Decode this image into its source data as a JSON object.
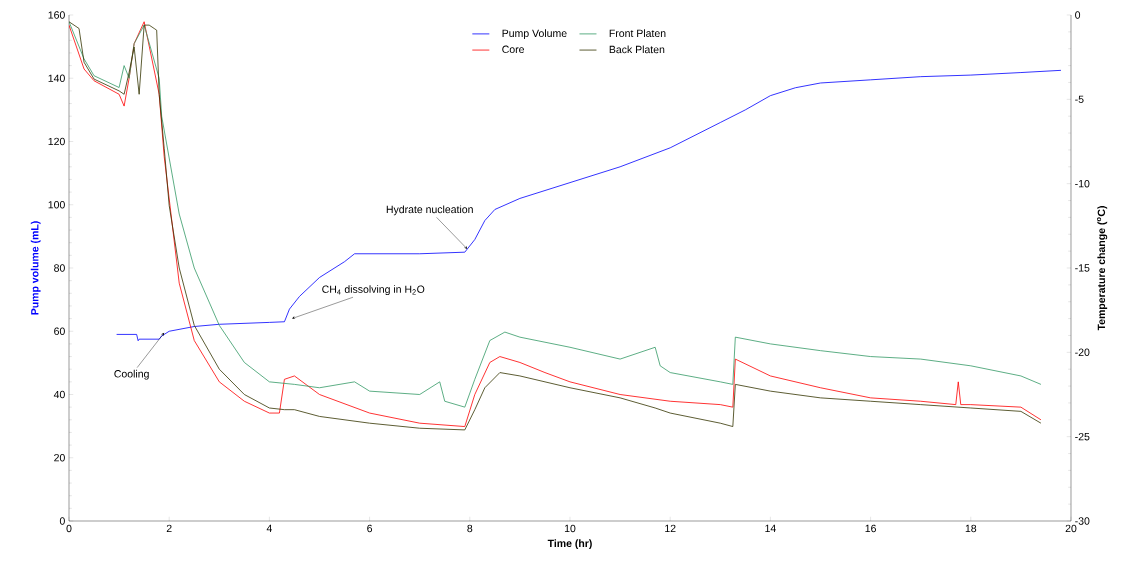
{
  "chart_data": {
    "type": "line",
    "xlabel": "Time (hr)",
    "ylabel": "Pump volume (mL)",
    "y2label": "Temperature change ($^{o}$C)",
    "xlim": [
      0,
      20
    ],
    "xticks": [
      0,
      2,
      4,
      6,
      8,
      10,
      12,
      14,
      16,
      18,
      20
    ],
    "ylim": [
      0,
      160
    ],
    "yticks": [
      0,
      20,
      40,
      60,
      80,
      100,
      120,
      140,
      160
    ],
    "y2lim": [
      -30,
      0
    ],
    "y2ticks": [
      -30,
      -25,
      -20,
      -15,
      -10,
      -5,
      0
    ],
    "legend": "top",
    "grid": false,
    "marker": "none",
    "line_style": "solid",
    "series": [
      {
        "name": "Pump Volume",
        "color": "#0000ff",
        "x": [
          0.95,
          1.35,
          1.38,
          1.4,
          1.8,
          1.85,
          2.0,
          2.5,
          3,
          4,
          4.3,
          4.4,
          4.6,
          5,
          5.5,
          5.7,
          7,
          7.9,
          8.1,
          8.3,
          8.5,
          9,
          10,
          11,
          12,
          13,
          13.5,
          14,
          14.5,
          15,
          16,
          17,
          18,
          19,
          19.8
        ],
        "values": [
          59,
          59,
          57,
          57.5,
          57.5,
          58.5,
          60,
          61.5,
          62.2,
          62.8,
          63,
          67,
          71,
          77,
          82,
          84.5,
          84.5,
          85,
          89,
          95,
          98.5,
          102,
          107,
          112,
          118,
          126,
          130,
          134.5,
          137,
          138.5,
          139.5,
          140.5,
          141,
          141.8,
          142.5
        ]
      },
      {
        "name": "Core",
        "color": "#ff0000",
        "axis": "y2",
        "x": [
          0,
          0.3,
          0.5,
          1,
          1.1,
          1.2,
          1.3,
          1.5,
          1.8,
          1.9,
          2.2,
          2.5,
          3,
          3.5,
          4,
          4.2,
          4.3,
          4.5,
          5,
          6,
          7,
          7.9,
          8.1,
          8.4,
          8.6,
          9,
          9.5,
          10,
          11,
          12,
          13,
          13.25,
          13.3,
          14,
          15,
          16,
          17,
          17.7,
          17.75,
          17.8,
          18,
          19,
          19.4
        ],
        "values": [
          -0.6,
          -3.2,
          -3.9,
          -4.7,
          -5.4,
          -3.75,
          -1.7,
          -0.4,
          -4.7,
          -8.4,
          -15.9,
          -19.3,
          -21.75,
          -22.9,
          -23.6,
          -23.6,
          -21.6,
          -21.4,
          -22.5,
          -23.6,
          -24.2,
          -24.4,
          -22.5,
          -20.6,
          -20.25,
          -20.6,
          -21.2,
          -21.75,
          -22.5,
          -22.9,
          -23.1,
          -23.25,
          -20.4,
          -21.4,
          -22.1,
          -22.7,
          -22.9,
          -23.1,
          -21.75,
          -23.1,
          -23.1,
          -23.25,
          -24.0
        ]
      },
      {
        "name": "Front Platen",
        "color": "#339966",
        "axis": "y2",
        "x": [
          0,
          0.3,
          0.5,
          1,
          1.1,
          1.2,
          1.3,
          1.5,
          1.8,
          1.85,
          2.2,
          2.5,
          3,
          3.5,
          4,
          4.5,
          5,
          5.7,
          6,
          7,
          7.4,
          7.5,
          7.9,
          8.1,
          8.4,
          8.7,
          9,
          10,
          11,
          11.7,
          11.8,
          12,
          13,
          13.25,
          13.3,
          14,
          15,
          16,
          17,
          18,
          19,
          19.4
        ],
        "values": [
          -0.4,
          -2.6,
          -3.6,
          -4.3,
          -3.0,
          -3.75,
          -1.7,
          -0.6,
          -3.75,
          -6.0,
          -11.8,
          -15.0,
          -18.4,
          -20.6,
          -21.75,
          -21.9,
          -22.1,
          -21.75,
          -22.3,
          -22.5,
          -21.75,
          -22.9,
          -23.25,
          -21.6,
          -19.3,
          -18.8,
          -19.1,
          -19.7,
          -20.4,
          -19.7,
          -20.8,
          -21.2,
          -21.75,
          -21.9,
          -19.1,
          -19.5,
          -19.9,
          -20.25,
          -20.4,
          -20.8,
          -21.4,
          -21.9
        ]
      },
      {
        "name": "Back Platen",
        "color": "#333300",
        "axis": "y2",
        "x": [
          0,
          0.2,
          0.3,
          0.5,
          1.0,
          1.1,
          1.2,
          1.3,
          1.4,
          1.5,
          1.6,
          1.7,
          1.75,
          1.8,
          1.9,
          2.0,
          2.2,
          2.5,
          3.0,
          3.5,
          4.0,
          4.3,
          4.5,
          5,
          6,
          7,
          7.9,
          8.1,
          8.3,
          8.6,
          9,
          10,
          11,
          11.7,
          12,
          13,
          13.25,
          13.3,
          14,
          15,
          16,
          17,
          18,
          19,
          19.4
        ],
        "values": [
          -0.4,
          -0.8,
          -2.8,
          -3.8,
          -4.5,
          -4.7,
          -3.4,
          -1.9,
          -4.7,
          -0.6,
          -0.6,
          -0.8,
          -0.9,
          -4.7,
          -7.9,
          -11.3,
          -15.0,
          -18.4,
          -21.0,
          -22.5,
          -23.3,
          -23.4,
          -23.4,
          -23.8,
          -24.2,
          -24.5,
          -24.6,
          -23.4,
          -22.1,
          -21.2,
          -21.4,
          -22.1,
          -22.7,
          -23.3,
          -23.6,
          -24.2,
          -24.4,
          -21.9,
          -22.3,
          -22.7,
          -22.9,
          -23.1,
          -23.3,
          -23.5,
          -24.2
        ]
      }
    ],
    "annotations": [
      {
        "text": "Cooling",
        "x": 1.85,
        "y": 58.5
      },
      {
        "text": "CH$_{4}$ dissolving in H$_{2}$O",
        "x": 4.4,
        "y": 63
      },
      {
        "text": "Hydrate nucleation",
        "x": 7.9,
        "y": 85
      }
    ]
  }
}
